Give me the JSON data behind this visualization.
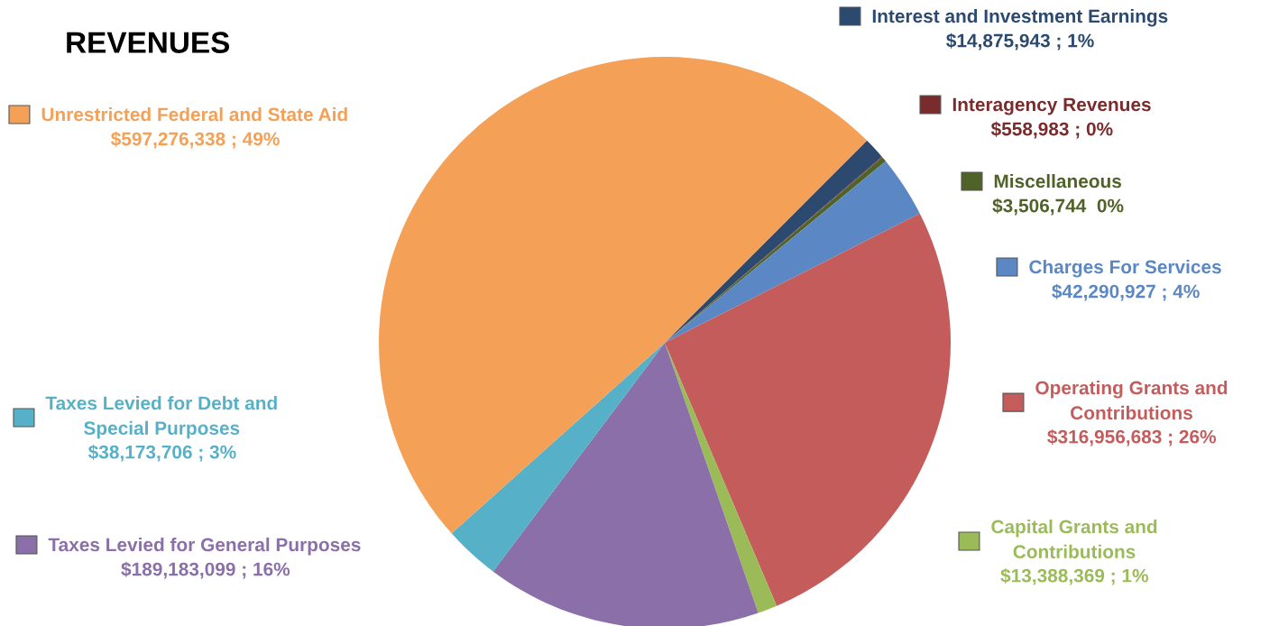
{
  "chart_data": {
    "type": "pie",
    "title": "REVENUES",
    "categories": [
      "Interest and Investment Earnings",
      "Interagency Revenues",
      "Miscellaneous",
      "Charges For Services",
      "Operating Grants and\nContributions",
      "Capital Grants and\nContributions",
      "Taxes Levied for General Purposes",
      "Taxes Levied for Debt and\nSpecial Purposes",
      "Unrestricted Federal and State Aid"
    ],
    "values": [
      14875943,
      558983,
      3506744,
      42290927,
      316956683,
      13388369,
      189183099,
      38173706,
      597276338
    ],
    "value_labels": [
      "$14,875,943 ; 1%",
      "$558,983 ; 0%",
      "$3,506,744  0%",
      "$42,290,927 ; 4%",
      "$316,956,683 ; 26%",
      "$13,388,369 ; 1%",
      "$189,183,099 ; 16%",
      "$38,173,706 ; 3%",
      "$597,276,338 ; 49%"
    ],
    "legend": "top left",
    "colors": [
      "#2c4a70",
      "#7a2c2c",
      "#4f6228",
      "#5b88c4",
      "#c45c5c",
      "#9bbb59",
      "#8a6fa8",
      "#55b0c8",
      "#f5a057"
    ]
  }
}
